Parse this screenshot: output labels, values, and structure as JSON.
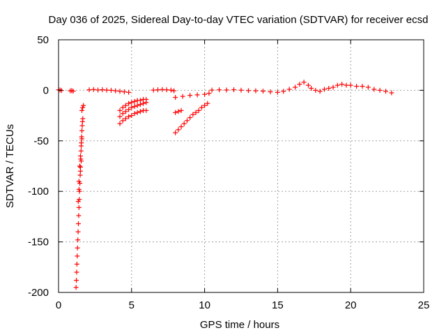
{
  "chart_data": {
    "type": "scatter",
    "title": "Day 036 of 2025, Sidereal Day-to-day VTEC variation (SDTVAR) for receiver ecsd",
    "xlabel": "GPS time / hours",
    "ylabel": "SDTVAR / TECUs",
    "xlim": [
      0,
      25
    ],
    "ylim": [
      -200,
      50
    ],
    "x_ticks": [
      0,
      5,
      10,
      15,
      20,
      25
    ],
    "y_ticks": [
      -200,
      -150,
      -100,
      -50,
      0,
      50
    ],
    "x_tick_labels": [
      "0",
      "5",
      "10",
      "15",
      "20",
      "25"
    ],
    "y_tick_labels": [
      "-200",
      "-150",
      "-100",
      "-50",
      "0",
      "50"
    ],
    "grid": true,
    "marker": "+",
    "series": [
      {
        "name": "SDTVAR",
        "color": "#ff0000",
        "points": [
          [
            0.0,
            0.5
          ],
          [
            0.1,
            0.3
          ],
          [
            0.2,
            -0.2
          ],
          [
            0.8,
            -0.5
          ],
          [
            0.9,
            -0.3
          ],
          [
            1.0,
            -0.8
          ],
          [
            1.2,
            -195
          ],
          [
            1.22,
            -188
          ],
          [
            1.24,
            -180
          ],
          [
            1.26,
            -172
          ],
          [
            1.28,
            -164
          ],
          [
            1.3,
            -156
          ],
          [
            1.32,
            -148
          ],
          [
            1.34,
            -140
          ],
          [
            1.36,
            -132
          ],
          [
            1.38,
            -124
          ],
          [
            1.4,
            -116
          ],
          [
            1.42,
            -108
          ],
          [
            1.44,
            -100
          ],
          [
            1.46,
            -92
          ],
          [
            1.48,
            -84
          ],
          [
            1.5,
            -76
          ],
          [
            1.52,
            -68
          ],
          [
            1.54,
            -60
          ],
          [
            1.56,
            -52
          ],
          [
            1.58,
            -46
          ],
          [
            1.6,
            -40
          ],
          [
            1.62,
            -35
          ],
          [
            1.64,
            -31
          ],
          [
            1.66,
            -28
          ],
          [
            1.4,
            -90
          ],
          [
            1.45,
            -75
          ],
          [
            1.5,
            -65
          ],
          [
            1.55,
            -55
          ],
          [
            1.6,
            -48
          ],
          [
            1.35,
            -110
          ],
          [
            1.4,
            -98
          ],
          [
            1.5,
            -80
          ],
          [
            1.55,
            -70
          ],
          [
            1.6,
            -20
          ],
          [
            1.65,
            -17
          ],
          [
            1.7,
            -15
          ],
          [
            2.1,
            0.5
          ],
          [
            2.4,
            0.8
          ],
          [
            2.7,
            0.3
          ],
          [
            3.0,
            0.6
          ],
          [
            3.3,
            0.2
          ],
          [
            3.6,
            0.0
          ],
          [
            3.9,
            -0.5
          ],
          [
            4.2,
            -1.0
          ],
          [
            4.5,
            -1.5
          ],
          [
            4.8,
            -2.0
          ],
          [
            4.2,
            -33
          ],
          [
            4.4,
            -30
          ],
          [
            4.6,
            -28
          ],
          [
            4.8,
            -26
          ],
          [
            5.0,
            -25
          ],
          [
            5.2,
            -23
          ],
          [
            5.4,
            -22
          ],
          [
            5.6,
            -21
          ],
          [
            5.8,
            -20
          ],
          [
            6.0,
            -20
          ],
          [
            4.2,
            -26
          ],
          [
            4.4,
            -23
          ],
          [
            4.6,
            -21
          ],
          [
            4.8,
            -19
          ],
          [
            5.0,
            -17
          ],
          [
            5.2,
            -16
          ],
          [
            5.4,
            -15
          ],
          [
            5.6,
            -14
          ],
          [
            5.8,
            -13
          ],
          [
            6.0,
            -12
          ],
          [
            4.2,
            -20
          ],
          [
            4.4,
            -17
          ],
          [
            4.6,
            -15
          ],
          [
            4.8,
            -13
          ],
          [
            5.0,
            -12
          ],
          [
            5.2,
            -11
          ],
          [
            5.4,
            -10
          ],
          [
            5.6,
            -10
          ],
          [
            5.8,
            -9
          ],
          [
            6.0,
            -9
          ],
          [
            6.5,
            0.2
          ],
          [
            6.8,
            0.5
          ],
          [
            7.1,
            0.8
          ],
          [
            7.4,
            0.5
          ],
          [
            7.7,
            0.2
          ],
          [
            7.9,
            -0.5
          ],
          [
            8.0,
            -42
          ],
          [
            8.2,
            -39
          ],
          [
            8.4,
            -36
          ],
          [
            8.6,
            -33
          ],
          [
            8.8,
            -30
          ],
          [
            9.0,
            -27
          ],
          [
            9.2,
            -24
          ],
          [
            9.4,
            -22
          ],
          [
            9.6,
            -20
          ],
          [
            9.8,
            -17
          ],
          [
            10.0,
            -15
          ],
          [
            10.2,
            -13
          ],
          [
            8.0,
            -22
          ],
          [
            8.2,
            -21
          ],
          [
            8.4,
            -20
          ],
          [
            8.0,
            -7
          ],
          [
            8.5,
            -6
          ],
          [
            9.0,
            -5
          ],
          [
            9.5,
            -4.5
          ],
          [
            10.0,
            -4
          ],
          [
            10.3,
            -3
          ],
          [
            10.5,
            0.2
          ],
          [
            11.0,
            0.5
          ],
          [
            11.5,
            0.3
          ],
          [
            12.0,
            0.6
          ],
          [
            12.5,
            0.1
          ],
          [
            13.0,
            -0.3
          ],
          [
            13.5,
            -0.5
          ],
          [
            14.0,
            -0.8
          ],
          [
            14.5,
            -1.5
          ],
          [
            15.0,
            -2
          ],
          [
            15.4,
            -1
          ],
          [
            15.8,
            1
          ],
          [
            16.2,
            3
          ],
          [
            16.5,
            6
          ],
          [
            16.8,
            8
          ],
          [
            17.1,
            5
          ],
          [
            17.3,
            2
          ],
          [
            17.6,
            0
          ],
          [
            17.9,
            -1
          ],
          [
            18.2,
            1
          ],
          [
            18.5,
            2
          ],
          [
            18.8,
            3
          ],
          [
            19.1,
            5
          ],
          [
            19.4,
            6
          ],
          [
            19.7,
            5
          ],
          [
            20.0,
            5
          ],
          [
            20.4,
            4
          ],
          [
            20.8,
            4
          ],
          [
            21.2,
            3
          ],
          [
            21.6,
            1
          ],
          [
            22.0,
            0
          ],
          [
            22.4,
            -1
          ],
          [
            22.8,
            -2.5
          ]
        ]
      }
    ]
  }
}
